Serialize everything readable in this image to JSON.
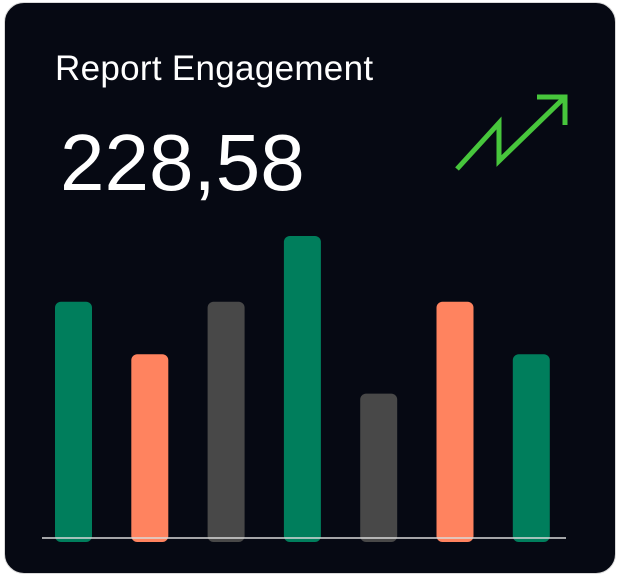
{
  "card": {
    "title": "Report Engagement",
    "metric": "228,58",
    "trend_icon": "trend-up-arrow",
    "trend_color": "#47c63c"
  },
  "chart_data": {
    "type": "bar",
    "values": [
      90,
      70,
      90,
      115,
      55,
      90,
      70
    ],
    "colors": [
      "#007e5c",
      "#ff835f",
      "#484848",
      "#007e5c",
      "#484848",
      "#ff835f",
      "#007e5c"
    ],
    "ylim": [
      0,
      115
    ],
    "grid": false,
    "legend": "none",
    "baseline_color": "#d9d9d9"
  }
}
